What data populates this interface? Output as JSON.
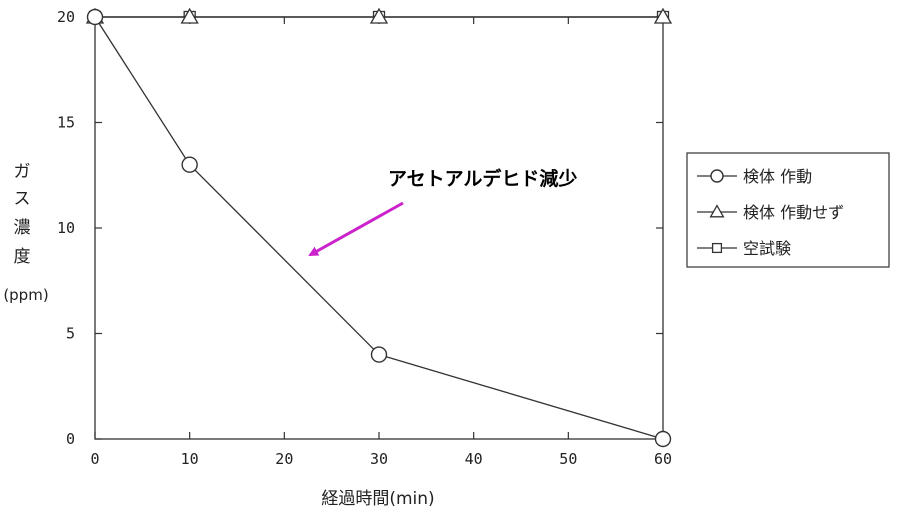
{
  "chart_data": {
    "type": "line",
    "xlabel": "経過時間(min)",
    "ylabel_chars": [
      "ガ",
      "ス",
      "濃",
      "度"
    ],
    "ylabel_unit": "(ppm)",
    "xlim": [
      0,
      60
    ],
    "ylim": [
      0,
      20
    ],
    "x_ticks": [
      "0",
      "10",
      "20",
      "30",
      "40",
      "50",
      "60"
    ],
    "y_ticks": [
      "0",
      "5",
      "10",
      "15",
      "20"
    ],
    "grid": false,
    "legend_position": "right",
    "annotation": "アセトアルデヒド減少",
    "annotation_arrow_color": "#cc22cc",
    "series": [
      {
        "name": "検体 作動",
        "marker": "circle",
        "points": [
          [
            0,
            20
          ],
          [
            10,
            13
          ],
          [
            30,
            4
          ],
          [
            60,
            0
          ]
        ]
      },
      {
        "name": "検体 作動せず",
        "marker": "triangle",
        "points": [
          [
            0,
            20
          ],
          [
            10,
            20
          ],
          [
            30,
            20
          ],
          [
            60,
            20
          ]
        ]
      },
      {
        "name": "空試験",
        "marker": "square",
        "points": [
          [
            0,
            20
          ],
          [
            10,
            20
          ],
          [
            30,
            20
          ],
          [
            60,
            20
          ]
        ]
      }
    ]
  }
}
